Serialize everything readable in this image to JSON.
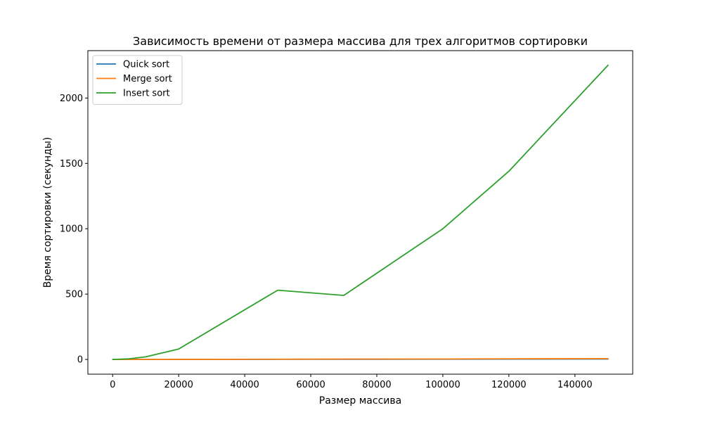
{
  "chart_data": {
    "type": "line",
    "title": "Зависимость времени от размера массива для трех алгоритмов сортировки",
    "xlabel": "Размер массива",
    "ylabel": "Время сортировки (секунды)",
    "xlim": [
      -7500,
      157500
    ],
    "ylim": [
      -112.5,
      2362.5
    ],
    "xticks": [
      0,
      20000,
      40000,
      60000,
      80000,
      100000,
      120000,
      140000
    ],
    "yticks": [
      0,
      500,
      1000,
      1500,
      2000
    ],
    "legend_position": "top-left",
    "grid": false,
    "series": [
      {
        "name": "Quick sort",
        "color": "#1f77b4",
        "x": [
          100,
          5000,
          10000,
          20000,
          50000,
          70000,
          100000,
          120000,
          150000
        ],
        "values": [
          0.0,
          0.1,
          0.2,
          0.4,
          1.0,
          1.5,
          2.0,
          2.5,
          3.2
        ]
      },
      {
        "name": "Merge sort",
        "color": "#ff7f0e",
        "x": [
          100,
          5000,
          10000,
          20000,
          50000,
          70000,
          100000,
          120000,
          150000
        ],
        "values": [
          0.0,
          0.2,
          0.4,
          0.8,
          2.0,
          3.0,
          4.0,
          5.0,
          6.5
        ]
      },
      {
        "name": "Insert sort",
        "color": "#2ca02c",
        "x": [
          100,
          5000,
          10000,
          20000,
          50000,
          70000,
          100000,
          120000,
          150000
        ],
        "values": [
          0.0,
          5,
          20,
          80,
          530,
          490,
          1000,
          1440,
          2250
        ]
      }
    ]
  }
}
